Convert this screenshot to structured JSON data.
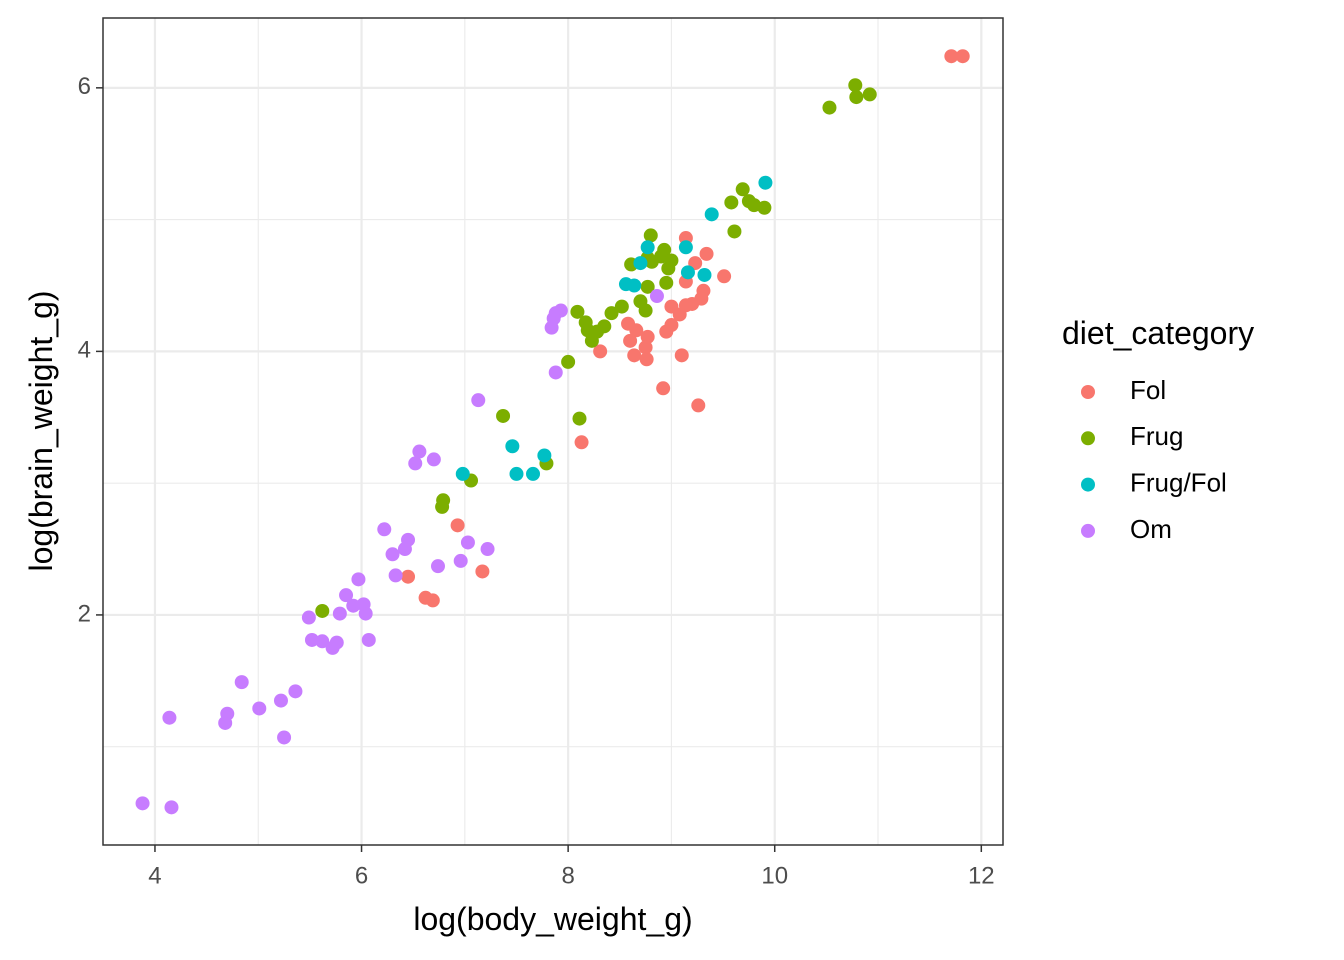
{
  "chart_data": {
    "type": "scatter",
    "x_label": "log(body_weight_g)",
    "y_label": "log(brain_weight_g)",
    "legend_title": "diet_category",
    "legend_position": "right",
    "xlim": [
      3.497,
      12.21
    ],
    "ylim": [
      0.254,
      6.53
    ],
    "xticks": [
      4,
      6,
      8,
      10,
      12
    ],
    "yticks": [
      2,
      4,
      6
    ],
    "grid": true,
    "minor_grid": true,
    "series": [
      {
        "name": "Fol",
        "color": "#F8766D",
        "x": [
          11.71,
          11.82,
          9.14,
          9.34,
          9.23,
          9.51,
          9.14,
          9.31,
          9.29,
          9.2,
          9.0,
          9.14,
          9.08,
          9.0,
          8.95,
          8.58,
          8.66,
          8.77,
          8.6,
          8.75,
          8.31,
          8.64,
          8.76,
          9.1,
          8.92,
          9.26,
          8.13,
          6.93,
          7.17,
          6.45,
          6.62,
          6.69
        ],
        "values": [
          6.24,
          6.24,
          4.86,
          4.74,
          4.67,
          4.57,
          4.53,
          4.46,
          4.4,
          4.36,
          4.34,
          4.35,
          4.28,
          4.2,
          4.15,
          4.21,
          4.16,
          4.11,
          4.08,
          4.03,
          4.0,
          3.97,
          3.94,
          3.97,
          3.72,
          3.59,
          3.31,
          2.68,
          2.33,
          2.29,
          2.13,
          2.11
        ]
      },
      {
        "name": "Frug",
        "color": "#7CAE00",
        "x": [
          10.78,
          10.92,
          10.79,
          10.53,
          9.69,
          9.58,
          9.75,
          9.8,
          9.9,
          9.61,
          8.8,
          8.93,
          8.77,
          8.9,
          9.0,
          8.81,
          8.61,
          8.97,
          8.95,
          8.77,
          8.7,
          8.75,
          8.52,
          8.42,
          8.09,
          8.17,
          8.19,
          8.35,
          8.28,
          8.23,
          8.0,
          7.37,
          8.11,
          7.79,
          7.06,
          6.79,
          6.78,
          5.62
        ],
        "values": [
          6.02,
          5.95,
          5.93,
          5.85,
          5.23,
          5.13,
          5.14,
          5.11,
          5.09,
          4.91,
          4.88,
          4.77,
          4.71,
          4.72,
          4.69,
          4.68,
          4.66,
          4.63,
          4.52,
          4.49,
          4.38,
          4.31,
          4.34,
          4.29,
          4.3,
          4.22,
          4.16,
          4.19,
          4.15,
          4.08,
          3.92,
          3.51,
          3.49,
          3.15,
          3.02,
          2.87,
          2.82,
          2.03
        ]
      },
      {
        "name": "Frug/Fol",
        "color": "#00BFC4",
        "x": [
          9.91,
          9.39,
          8.77,
          9.14,
          8.7,
          8.56,
          8.64,
          9.16,
          9.32,
          7.46,
          7.77,
          7.5,
          7.66,
          6.98
        ],
        "values": [
          5.28,
          5.04,
          4.79,
          4.79,
          4.67,
          4.51,
          4.5,
          4.6,
          4.58,
          3.28,
          3.21,
          3.07,
          3.07,
          3.07
        ]
      },
      {
        "name": "Om",
        "color": "#C77CFF",
        "x": [
          7.93,
          7.88,
          7.86,
          7.84,
          7.88,
          8.86,
          7.13,
          6.56,
          6.7,
          6.52,
          6.22,
          6.45,
          7.03,
          7.22,
          6.42,
          6.3,
          6.96,
          6.74,
          6.33,
          5.97,
          5.85,
          5.92,
          6.02,
          5.79,
          6.04,
          5.49,
          5.52,
          5.62,
          5.76,
          5.72,
          6.07,
          4.84,
          5.36,
          5.22,
          4.7,
          5.01,
          4.68,
          4.14,
          5.25,
          3.88,
          4.16
        ],
        "values": [
          4.31,
          4.29,
          4.25,
          4.18,
          3.84,
          4.42,
          3.63,
          3.24,
          3.18,
          3.15,
          2.65,
          2.57,
          2.55,
          2.5,
          2.5,
          2.46,
          2.41,
          2.37,
          2.3,
          2.27,
          2.15,
          2.07,
          2.08,
          2.01,
          2.01,
          1.98,
          1.81,
          1.8,
          1.79,
          1.75,
          1.81,
          1.49,
          1.42,
          1.35,
          1.25,
          1.29,
          1.18,
          1.22,
          1.07,
          0.57,
          0.54
        ]
      }
    ]
  }
}
